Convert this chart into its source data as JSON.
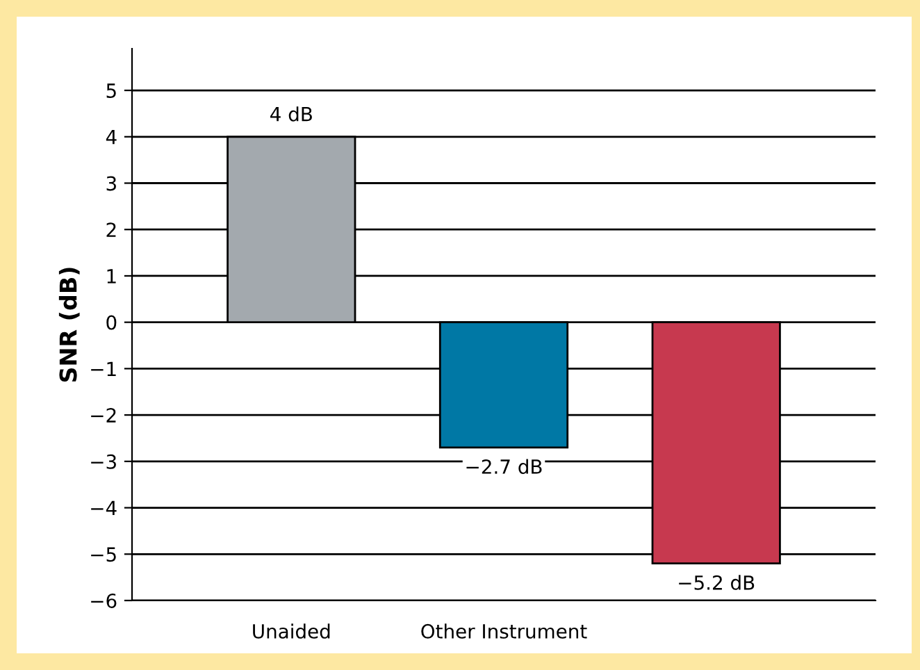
{
  "chart_data": {
    "type": "bar",
    "ylabel": "SNR (dB)",
    "categories": [
      "Unaided",
      "Other Instrument",
      null
    ],
    "values": [
      4,
      -2.7,
      -5.2
    ],
    "colors": [
      "#a3a9ae",
      "#0078a5",
      "#c7394f"
    ],
    "value_labels": [
      "4 dB",
      "−2.7 dB",
      "−5.2 dB"
    ],
    "ylim": [
      -6,
      5.9
    ],
    "yticks": [
      -6,
      -5,
      -4,
      -3,
      -2,
      -1,
      0,
      1,
      2,
      3,
      4,
      5
    ],
    "grid": "y"
  }
}
